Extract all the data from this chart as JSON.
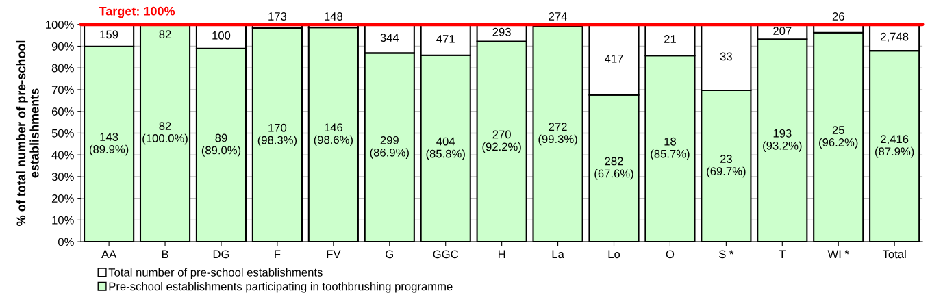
{
  "chart_data": {
    "type": "bar",
    "stacked": true,
    "ylabel": "% of total number of pre-school\nestablishments",
    "categories": [
      "AA",
      "B",
      "DG",
      "F",
      "FV",
      "G",
      "GGC",
      "H",
      "La",
      "Lo",
      "O",
      "S *",
      "T",
      "WI *",
      "Total"
    ],
    "series": [
      {
        "name": "Pre-school establishments participating in toothbrushing programme",
        "color": "#ccffcc",
        "values": [
          89.9,
          100.0,
          89.0,
          98.3,
          98.6,
          86.9,
          85.8,
          92.2,
          99.3,
          67.6,
          85.7,
          69.7,
          93.2,
          96.2,
          87.9
        ],
        "value_labels": [
          "143\n(89.9%)",
          "82\n(100.0%)",
          "89\n(89.0%)",
          "170\n(98.3%)",
          "146\n(98.6%)",
          "299\n(86.9%)",
          "404\n(85.8%)",
          "270\n(92.2%)",
          "272\n(99.3%)",
          "282\n(67.6%)",
          "18\n(85.7%)",
          "23\n(69.7%)",
          "193\n(93.2%)",
          "25\n(96.2%)",
          "2,416\n(87.9%)"
        ]
      },
      {
        "name": "Total number of pre-school establishments",
        "color": "#ffffff",
        "values": [
          10.1,
          0.0,
          11.0,
          1.7,
          1.4,
          13.1,
          14.2,
          7.8,
          null,
          32.4,
          14.3,
          30.3,
          6.8,
          3.8,
          12.1
        ]
      }
    ],
    "annotations": [
      {
        "text": "159",
        "x": "AA",
        "y": 100
      },
      {
        "text": "82",
        "x": "B",
        "y": 100
      },
      {
        "text": "100",
        "x": "DG",
        "y": 100
      },
      {
        "text": "173",
        "x": "F",
        "y": 100
      },
      {
        "text": "148",
        "x": "FV",
        "y": 100
      },
      {
        "text": "344",
        "x": "G",
        "y": 100
      },
      {
        "text": "471",
        "x": "GGC",
        "y": 100
      },
      {
        "text": "293",
        "x": "H",
        "y": 100
      },
      {
        "text": "274",
        "x": "La",
        "y": 100
      },
      {
        "text": "417",
        "x": "Lo",
        "y": 100
      },
      {
        "text": "21",
        "x": "O",
        "y": 100
      },
      {
        "text": "33",
        "x": "S *",
        "y": 100
      },
      {
        "text": "207",
        "x": "T",
        "y": 100
      },
      {
        "text": "26",
        "x": "WI *",
        "y": 100
      },
      {
        "text": "2,748",
        "x": "Total",
        "y": 100
      }
    ],
    "ylim": [
      0,
      100
    ],
    "yticks": [
      {
        "value": 0,
        "label": "0%"
      },
      {
        "value": 10,
        "label": "10%"
      },
      {
        "value": 20,
        "label": "20%"
      },
      {
        "value": 30,
        "label": "30%"
      },
      {
        "value": 40,
        "label": "40%"
      },
      {
        "value": 50,
        "label": "50%"
      },
      {
        "value": 60,
        "label": "60%"
      },
      {
        "value": 70,
        "label": "70%"
      },
      {
        "value": 80,
        "label": "80%"
      },
      {
        "value": 90,
        "label": "90%"
      },
      {
        "value": 100,
        "label": "100%"
      }
    ],
    "ref_lines": [
      {
        "axis": "y",
        "value": 100,
        "label": "Target: 100%",
        "color": "#ff0000",
        "line_style": "solid"
      }
    ],
    "grid": "y",
    "legend": "bottom left"
  }
}
